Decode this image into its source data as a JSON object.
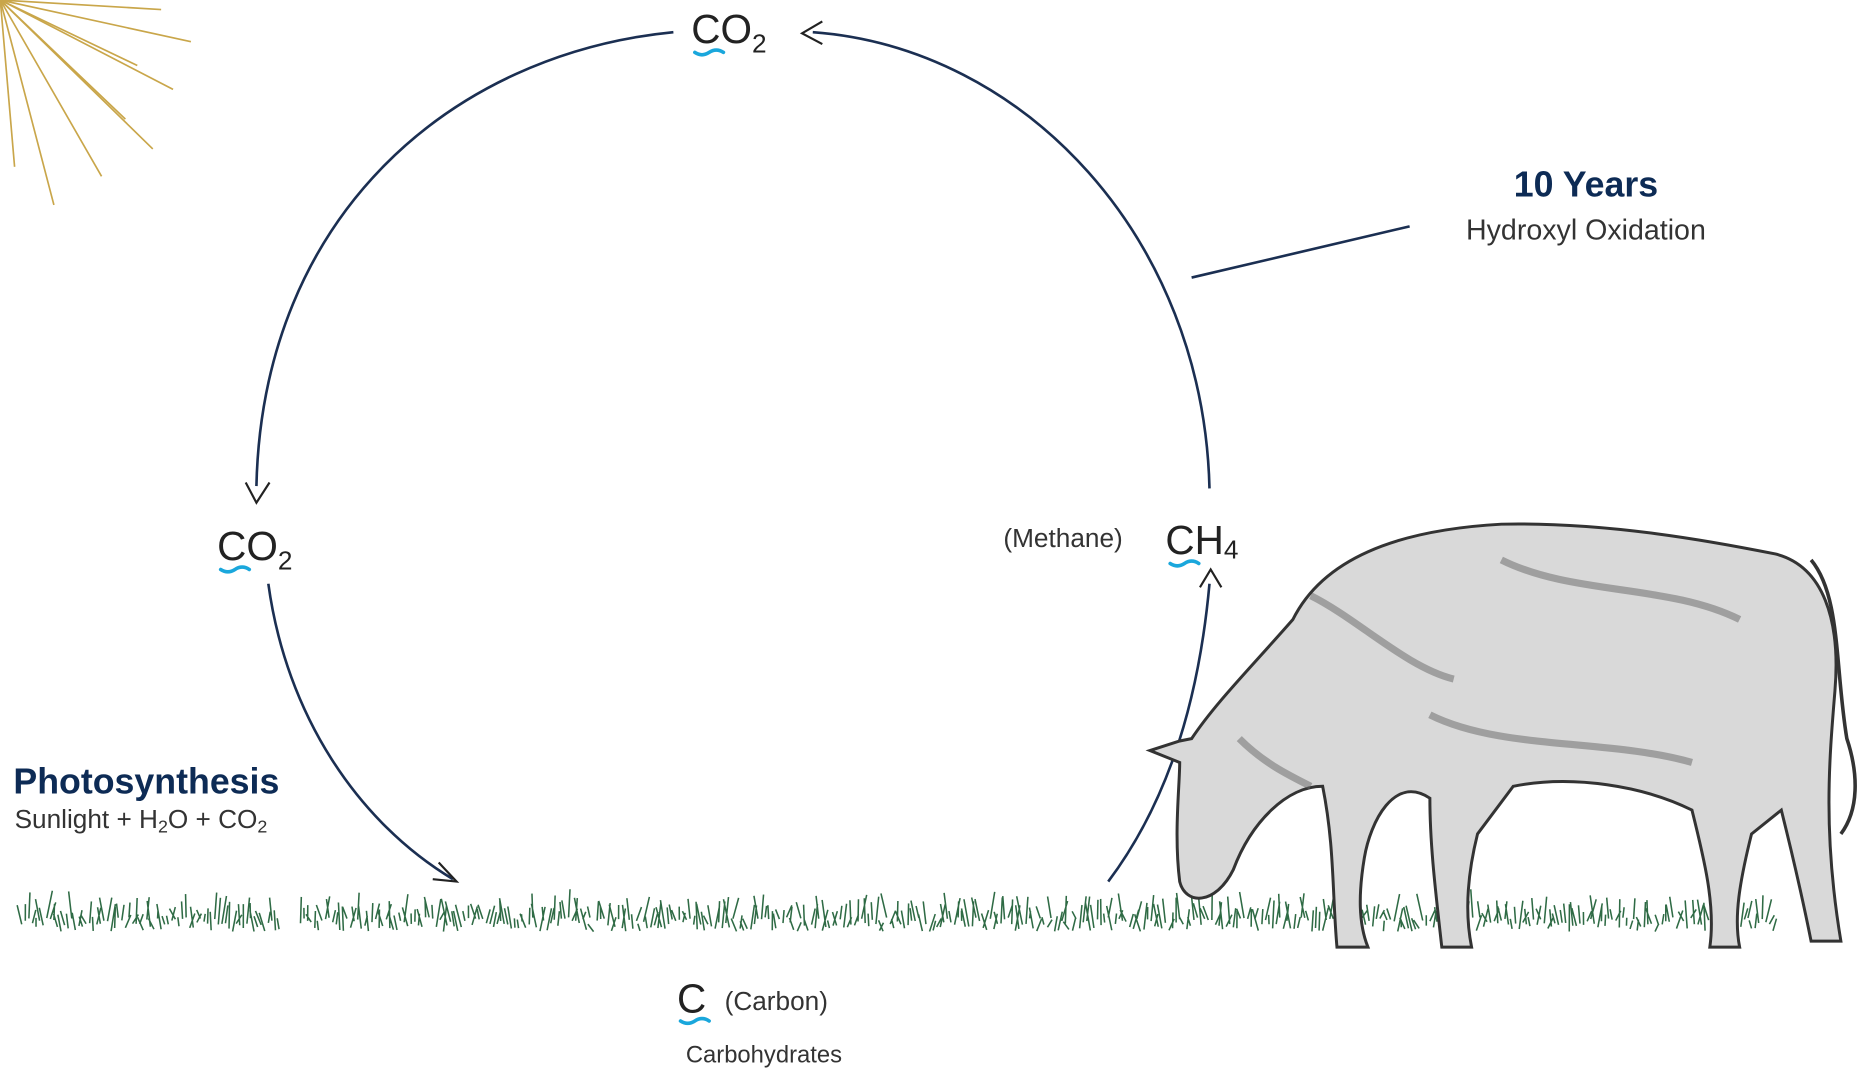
{
  "cycle": {
    "top": {
      "text": "CO",
      "sub": "2"
    },
    "left": {
      "text": "CO",
      "sub": "2"
    },
    "methane": {
      "name": "(Methane)",
      "text": "CH",
      "sub": "4"
    },
    "carbon": {
      "text": "C",
      "name": "(Carbon)",
      "caption": "Carbohydrates"
    }
  },
  "oxidation": {
    "title": "10 Years",
    "subtitle": "Hydroxyl Oxidation"
  },
  "photosynthesis": {
    "title": "Photosynthesis",
    "parts": [
      {
        "text": "Sunlight + H"
      },
      {
        "sub": "2"
      },
      {
        "text": "O + CO"
      },
      {
        "sub": "2"
      }
    ]
  }
}
